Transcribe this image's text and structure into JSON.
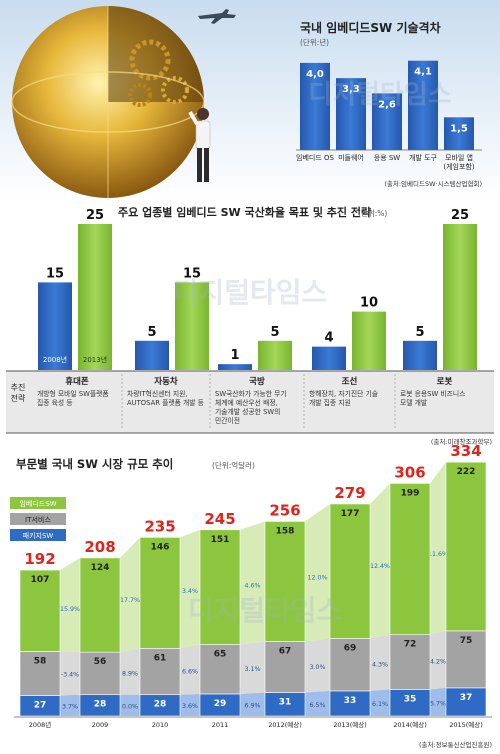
{
  "watermark": "디지털타임스",
  "chart_data": [
    {
      "type": "bar",
      "title": "국내 임베디드SW 기술격차",
      "unit": "(단위:년)",
      "categories": [
        "임베디드 OS",
        "미들웨어",
        "응용 SW",
        "개발 도구",
        "모바일 앱\n(게임포함)"
      ],
      "values": [
        4.0,
        3.3,
        2.6,
        4.1,
        1.5
      ],
      "value_labels": [
        "4,0",
        "3,3",
        "2,6",
        "4,1",
        "1,5"
      ],
      "ylim": [
        0,
        4.5
      ],
      "color": "#2f6bc4",
      "source": "(출처:임베디드SW·시스템산업협회)"
    },
    {
      "type": "bar",
      "title": "주요 업종별 임베디드 SW 국산화율 목표 및 추진 전략",
      "unit": "(단위:%)",
      "categories": [
        "휴대폰",
        "자동차",
        "국방",
        "조선",
        "로봇"
      ],
      "series": [
        {
          "name": "2008년",
          "values": [
            15,
            5,
            1,
            4,
            5
          ],
          "color": "#2f6bc4"
        },
        {
          "name": "2013년",
          "values": [
            25,
            15,
            5,
            10,
            25
          ],
          "color": "#8cc63f"
        }
      ],
      "ylim": [
        0,
        25
      ],
      "row_header": "추진\n전략",
      "strategies": [
        "개방형 모바일 SW플랫폼\n집중 육성 등",
        "차량IT혁신센터 지원,\nAUTOSAR 플랫폼 개발 등",
        "SW국산화가 가능한 무기\n체계에 예산우선 배정,\n기술개발 성공한 SW의\n민간이전",
        "항해장치, 자기진단 기술\n개발 집중 지원",
        "로봇 응용SW 비즈니스\n모델 개발"
      ],
      "source": "(출처:미래창조과학부)"
    },
    {
      "type": "bar",
      "title": "부문별 국내 SW 시장 규모 추이",
      "unit": "(단위:억달러)",
      "categories": [
        "2008년",
        "2009",
        "2010",
        "2011",
        "2012(예상)",
        "2013(예상)",
        "2014(예상)",
        "2015(예상)"
      ],
      "series": [
        {
          "name": "임베디드SW",
          "values": [
            107,
            124,
            146,
            151,
            158,
            177,
            199,
            222
          ],
          "color": "#8cc63f",
          "growth": [
            "15.9%",
            "17.7%",
            "3.4%",
            "4.6%",
            "12.0%",
            "12.4%",
            "11.6%"
          ]
        },
        {
          "name": "IT서비스",
          "values": [
            58,
            56,
            61,
            65,
            67,
            69,
            72,
            75
          ],
          "color": "#a3a3a3",
          "growth": [
            "-3.4%",
            "8.9%",
            "6.6%",
            "3.1%",
            "3.0%",
            "4.3%",
            "4.2%"
          ]
        },
        {
          "name": "패키지SW",
          "values": [
            27,
            28,
            28,
            29,
            31,
            33,
            35,
            37
          ],
          "color": "#2f6bc4",
          "growth": [
            "3.7%",
            "0.0%",
            "3.6%",
            "6.9%",
            "6.5%",
            "6.1%",
            "5.7%"
          ]
        }
      ],
      "totals": [
        192,
        208,
        235,
        245,
        256,
        279,
        306,
        334
      ],
      "source": "(출처:정보통신산업진흥원)"
    }
  ]
}
